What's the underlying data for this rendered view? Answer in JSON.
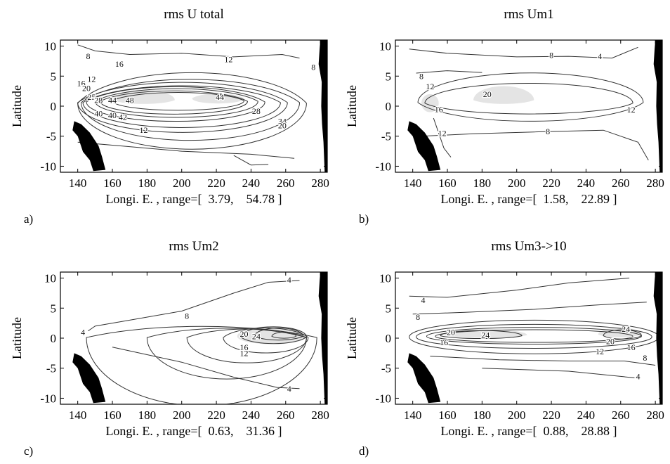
{
  "chart_data": [
    {
      "type": "contour",
      "panel_label": "a)",
      "title": "rms U total",
      "xlabel": "Longi. E. , range=[  3.79,    54.78 ]",
      "ylabel": "Latitude",
      "xlim": [
        130,
        284
      ],
      "ylim": [
        -11,
        11
      ],
      "xticks": [
        "140",
        "160",
        "180",
        "200",
        "220",
        "240",
        "260",
        "280"
      ],
      "yticks": [
        "10",
        "5",
        "0",
        "-5",
        "-10"
      ],
      "range": [
        3.79,
        54.78
      ],
      "contour_interval": 4,
      "shaded_above": 44,
      "contour_labels": [
        {
          "text": "8",
          "x": 146,
          "y": 8.3
        },
        {
          "text": "16",
          "x": 164,
          "y": 7.0
        },
        {
          "text": "12",
          "x": 227,
          "y": 7.8
        },
        {
          "text": "8",
          "x": 276,
          "y": 6.5
        },
        {
          "text": "12",
          "x": 148,
          "y": 4.5
        },
        {
          "text": "16",
          "x": 142,
          "y": 3.8
        },
        {
          "text": "20",
          "x": 145,
          "y": 3.0
        },
        {
          "text": "25",
          "x": 148,
          "y": 1.5
        },
        {
          "text": "28",
          "x": 152,
          "y": 1.0
        },
        {
          "text": "44",
          "x": 160,
          "y": 1.0
        },
        {
          "text": "48",
          "x": 170,
          "y": 1.0
        },
        {
          "text": "44",
          "x": 222,
          "y": 1.5
        },
        {
          "text": "28",
          "x": 243,
          "y": -0.8
        },
        {
          "text": "40",
          "x": 152,
          "y": -1.2
        },
        {
          "text": "40",
          "x": 160,
          "y": -1.5
        },
        {
          "text": "42",
          "x": 166,
          "y": -1.8
        },
        {
          "text": "34",
          "x": 258,
          "y": -2.5
        },
        {
          "text": "20",
          "x": 258,
          "y": -3.2
        },
        {
          "text": "12",
          "x": 178,
          "y": -4.0
        }
      ]
    },
    {
      "type": "contour",
      "panel_label": "b)",
      "title": "rms Um1",
      "xlabel": "Longi. E. , range=[  1.58,    22.89 ]",
      "ylabel": "Latitude",
      "xlim": [
        130,
        284
      ],
      "ylim": [
        -11,
        11
      ],
      "xticks": [
        "140",
        "160",
        "180",
        "200",
        "220",
        "240",
        "260",
        "280"
      ],
      "yticks": [
        "10",
        "5",
        "0",
        "-5",
        "-10"
      ],
      "range": [
        1.58,
        22.89
      ],
      "contour_interval": 4,
      "shaded_above": 20,
      "contour_labels": [
        {
          "text": "8",
          "x": 220,
          "y": 8.5
        },
        {
          "text": "4",
          "x": 248,
          "y": 8.3
        },
        {
          "text": "8",
          "x": 145,
          "y": 5.0
        },
        {
          "text": "12",
          "x": 150,
          "y": 3.3
        },
        {
          "text": "20",
          "x": 183,
          "y": 2.0
        },
        {
          "text": "16",
          "x": 155,
          "y": -0.5
        },
        {
          "text": "12",
          "x": 266,
          "y": -0.6
        },
        {
          "text": "12",
          "x": 157,
          "y": -4.5
        },
        {
          "text": "8",
          "x": 218,
          "y": -4.2
        }
      ]
    },
    {
      "type": "contour",
      "panel_label": "c)",
      "title": "rms Um2",
      "xlabel": "Longi. E. , range=[  0.63,    31.36 ]",
      "ylabel": "Latitude",
      "xlim": [
        130,
        284
      ],
      "ylim": [
        -11,
        11
      ],
      "xticks": [
        "140",
        "160",
        "180",
        "200",
        "220",
        "240",
        "260",
        "280"
      ],
      "yticks": [
        "10",
        "5",
        "0",
        "-5",
        "-10"
      ],
      "range": [
        0.63,
        31.36
      ],
      "contour_interval": 4,
      "shaded_above": 20,
      "contour_labels": [
        {
          "text": "4",
          "x": 262,
          "y": 9.7
        },
        {
          "text": "4",
          "x": 143,
          "y": 1.0
        },
        {
          "text": "8",
          "x": 203,
          "y": 3.7
        },
        {
          "text": "20",
          "x": 236,
          "y": 0.7
        },
        {
          "text": "24",
          "x": 243,
          "y": 0.3
        },
        {
          "text": "16",
          "x": 236,
          "y": -1.5
        },
        {
          "text": "12",
          "x": 236,
          "y": -2.5
        },
        {
          "text": "4",
          "x": 262,
          "y": -8.4
        }
      ]
    },
    {
      "type": "contour",
      "panel_label": "d)",
      "title": "rms Um3->10",
      "xlabel": "Longi. E. , range=[  0.88,    28.88 ]",
      "ylabel": "Latitude",
      "xlim": [
        130,
        284
      ],
      "ylim": [
        -11,
        11
      ],
      "xticks": [
        "140",
        "160",
        "180",
        "200",
        "220",
        "240",
        "260",
        "280"
      ],
      "yticks": [
        "10",
        "5",
        "0",
        "-5",
        "-10"
      ],
      "range": [
        0.88,
        28.88
      ],
      "contour_interval": 4,
      "shaded_above": 20,
      "contour_labels": [
        {
          "text": "4",
          "x": 146,
          "y": 6.3
        },
        {
          "text": "8",
          "x": 143,
          "y": 3.5
        },
        {
          "text": "20",
          "x": 162,
          "y": 1.0
        },
        {
          "text": "24",
          "x": 182,
          "y": 0.5
        },
        {
          "text": "16",
          "x": 158,
          "y": -0.7
        },
        {
          "text": "24",
          "x": 263,
          "y": 1.5
        },
        {
          "text": "20",
          "x": 254,
          "y": -0.5
        },
        {
          "text": "16",
          "x": 266,
          "y": -1.5
        },
        {
          "text": "12",
          "x": 248,
          "y": -2.2
        },
        {
          "text": "8",
          "x": 274,
          "y": -3.3
        },
        {
          "text": "4",
          "x": 270,
          "y": -6.4
        }
      ]
    }
  ]
}
